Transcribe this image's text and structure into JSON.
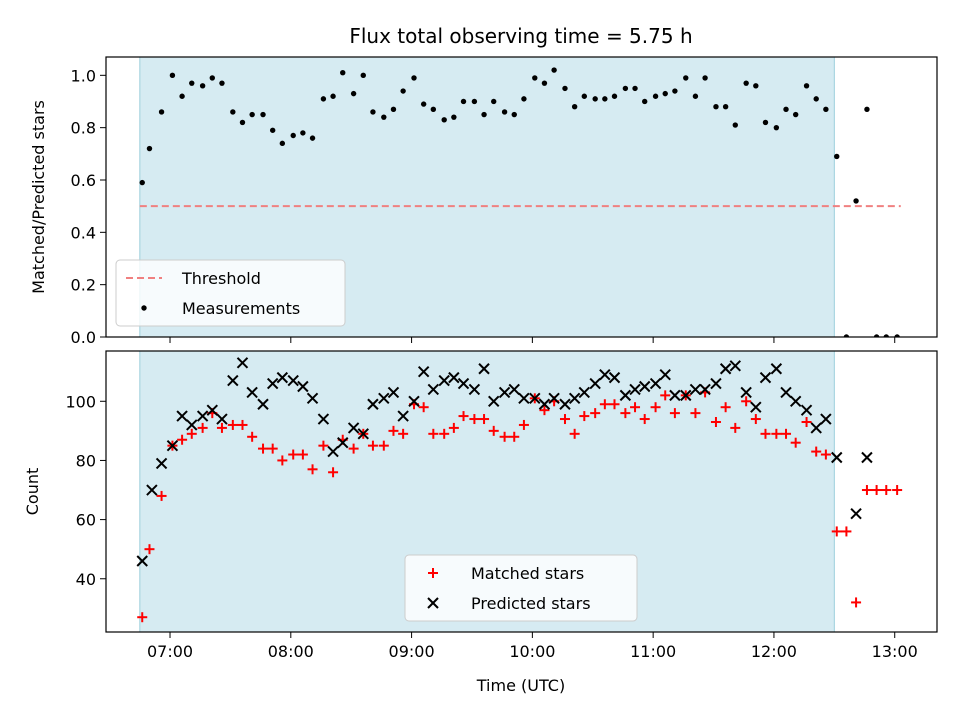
{
  "chart_data": [
    {
      "type": "scatter",
      "title": "Flux total observing time = 5.75 h",
      "xlabel": "",
      "ylabel": "Matched/Predicted stars",
      "ylim": [
        0,
        1.07
      ],
      "yticks": [
        "0.0",
        "0.2",
        "0.4",
        "0.6",
        "0.8",
        "1.0"
      ],
      "xticks": [
        "07:00",
        "08:00",
        "09:00",
        "10:00",
        "11:00",
        "12:00",
        "13:00"
      ],
      "observing_window_hours": [
        6.75,
        12.5
      ],
      "threshold": {
        "name": "Threshold",
        "value": 0.5,
        "x_range_hours": [
          6.75,
          13.05
        ],
        "color": "#f08080"
      },
      "series": [
        {
          "name": "Measurements",
          "marker": "dot",
          "color": "#000000",
          "x_hours": [
            6.77,
            6.83,
            6.93,
            7.02,
            7.1,
            7.18,
            7.27,
            7.35,
            7.43,
            7.52,
            7.6,
            7.68,
            7.77,
            7.85,
            7.93,
            8.02,
            8.1,
            8.18,
            8.27,
            8.35,
            8.43,
            8.52,
            8.6,
            8.68,
            8.77,
            8.85,
            8.93,
            9.02,
            9.1,
            9.18,
            9.27,
            9.35,
            9.43,
            9.52,
            9.6,
            9.68,
            9.77,
            9.85,
            9.93,
            10.02,
            10.1,
            10.18,
            10.27,
            10.35,
            10.43,
            10.52,
            10.6,
            10.68,
            10.77,
            10.85,
            10.93,
            11.02,
            11.1,
            11.18,
            11.27,
            11.35,
            11.43,
            11.52,
            11.6,
            11.68,
            11.77,
            11.85,
            11.93,
            12.02,
            12.1,
            12.18,
            12.27,
            12.35,
            12.43,
            12.52,
            12.6,
            12.68,
            12.77,
            12.85,
            12.93,
            13.02
          ],
          "values": [
            0.59,
            0.72,
            0.86,
            1.0,
            0.92,
            0.97,
            0.96,
            0.99,
            0.97,
            0.86,
            0.82,
            0.85,
            0.85,
            0.79,
            0.74,
            0.77,
            0.78,
            0.76,
            0.91,
            0.92,
            1.01,
            0.93,
            1.0,
            0.86,
            0.84,
            0.87,
            0.94,
            0.99,
            0.89,
            0.87,
            0.83,
            0.84,
            0.9,
            0.9,
            0.85,
            0.9,
            0.86,
            0.85,
            0.91,
            0.99,
            0.97,
            1.02,
            0.95,
            0.88,
            0.92,
            0.91,
            0.91,
            0.92,
            0.95,
            0.95,
            0.9,
            0.92,
            0.93,
            0.94,
            0.99,
            0.92,
            0.99,
            0.88,
            0.88,
            0.81,
            0.97,
            0.96,
            0.82,
            0.8,
            0.87,
            0.85,
            0.96,
            0.91,
            0.87,
            0.69,
            0.0,
            0.52,
            0.87,
            0.0,
            0.0,
            0.0
          ]
        }
      ]
    },
    {
      "type": "scatter",
      "title": "",
      "xlabel": "Time (UTC)",
      "ylabel": "Count",
      "ylim": [
        22,
        117
      ],
      "yticks": [
        "40",
        "60",
        "80",
        "100"
      ],
      "xticks": [
        "07:00",
        "08:00",
        "09:00",
        "10:00",
        "11:00",
        "12:00",
        "13:00"
      ],
      "observing_window_hours": [
        6.75,
        12.5
      ],
      "series": [
        {
          "name": "Matched stars",
          "marker": "plus",
          "color": "#ff0000",
          "x_hours": [
            6.77,
            6.83,
            6.93,
            7.02,
            7.1,
            7.18,
            7.27,
            7.35,
            7.43,
            7.52,
            7.6,
            7.68,
            7.77,
            7.85,
            7.93,
            8.02,
            8.1,
            8.18,
            8.27,
            8.35,
            8.43,
            8.52,
            8.6,
            8.68,
            8.77,
            8.85,
            8.93,
            9.02,
            9.1,
            9.18,
            9.27,
            9.35,
            9.43,
            9.52,
            9.6,
            9.68,
            9.77,
            9.85,
            9.93,
            10.02,
            10.1,
            10.18,
            10.27,
            10.35,
            10.43,
            10.52,
            10.6,
            10.68,
            10.77,
            10.85,
            10.93,
            11.02,
            11.1,
            11.18,
            11.27,
            11.35,
            11.43,
            11.52,
            11.6,
            11.68,
            11.77,
            11.85,
            11.93,
            12.02,
            12.1,
            12.18,
            12.27,
            12.35,
            12.43,
            12.52,
            12.6,
            12.68,
            12.77,
            12.85,
            12.93,
            13.02
          ],
          "values": [
            27,
            50,
            68,
            85,
            87,
            89,
            91,
            96,
            91,
            92,
            92,
            88,
            84,
            84,
            80,
            82,
            82,
            77,
            85,
            76,
            87,
            84,
            89,
            85,
            85,
            90,
            89,
            99,
            98,
            89,
            89,
            91,
            95,
            94,
            94,
            90,
            88,
            88,
            92,
            101,
            97,
            100,
            94,
            89,
            95,
            96,
            99,
            99,
            96,
            98,
            94,
            98,
            102,
            96,
            102,
            96,
            103,
            93,
            98,
            91,
            100,
            94,
            89,
            89,
            89,
            86,
            93,
            83,
            82,
            56,
            56,
            32,
            70,
            70,
            70,
            70
          ]
        },
        {
          "name": "Predicted stars",
          "marker": "x",
          "color": "#000000",
          "x_hours": [
            6.77,
            6.85,
            6.93,
            7.02,
            7.1,
            7.18,
            7.27,
            7.35,
            7.43,
            7.52,
            7.6,
            7.68,
            7.77,
            7.85,
            7.93,
            8.02,
            8.1,
            8.18,
            8.27,
            8.35,
            8.43,
            8.52,
            8.6,
            8.68,
            8.77,
            8.85,
            8.93,
            9.02,
            9.1,
            9.18,
            9.27,
            9.35,
            9.43,
            9.52,
            9.6,
            9.68,
            9.77,
            9.85,
            9.93,
            10.02,
            10.1,
            10.18,
            10.27,
            10.35,
            10.43,
            10.52,
            10.6,
            10.68,
            10.77,
            10.85,
            10.93,
            11.02,
            11.1,
            11.18,
            11.27,
            11.35,
            11.43,
            11.52,
            11.6,
            11.68,
            11.77,
            11.85,
            11.93,
            12.02,
            12.1,
            12.18,
            12.27,
            12.35,
            12.43,
            12.52,
            12.68,
            12.77
          ],
          "values": [
            46,
            70,
            79,
            85,
            95,
            92,
            95,
            97,
            94,
            107,
            113,
            103,
            99,
            106,
            108,
            107,
            105,
            101,
            94,
            83,
            86,
            91,
            89,
            99,
            101,
            103,
            95,
            100,
            110,
            104,
            107,
            108,
            106,
            104,
            111,
            100,
            103,
            104,
            101,
            101,
            99,
            101,
            99,
            101,
            103,
            106,
            109,
            108,
            102,
            104,
            105,
            106,
            109,
            102,
            102,
            104,
            104,
            106,
            111,
            112,
            103,
            98,
            108,
            111,
            103,
            100,
            97,
            91,
            94,
            81,
            62,
            81
          ]
        }
      ]
    }
  ]
}
